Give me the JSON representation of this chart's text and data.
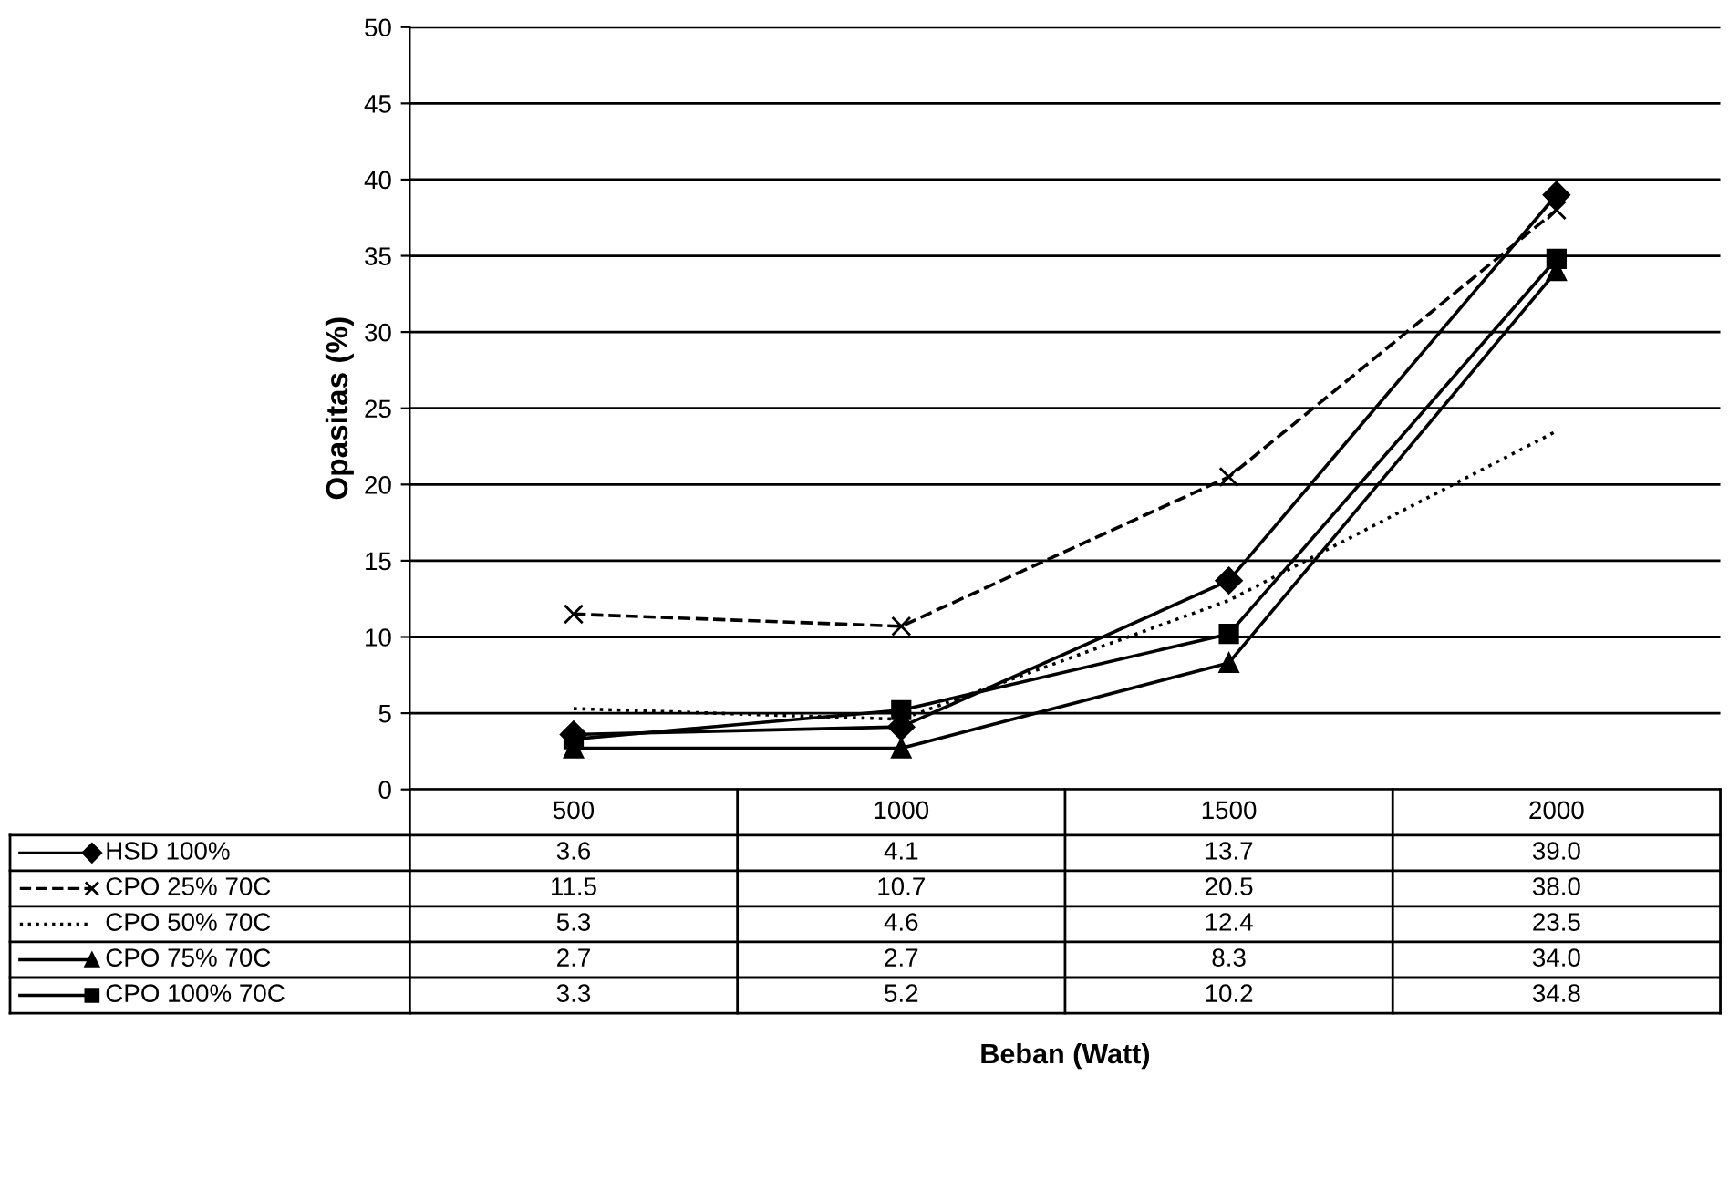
{
  "chart_data": {
    "type": "line",
    "annotations": [
      "Beban (Watt)"
    ],
    "ylabel": "Opasitas (%)",
    "categories": [
      "500",
      "1000",
      "1500",
      "2000"
    ],
    "ylim": [
      0,
      50
    ],
    "yticks": [
      0,
      5,
      10,
      15,
      20,
      25,
      30,
      35,
      40,
      45,
      50
    ],
    "grid": "y",
    "legend": "bottom left",
    "series": [
      {
        "name": "HSD 100%",
        "color": "#000000",
        "marker": "diamond",
        "line_style": "solid",
        "values": [
          3.6,
          4.1,
          13.7,
          39.0
        ],
        "value_labels": [
          "3.6",
          "4.1",
          "13.7",
          "39.0"
        ]
      },
      {
        "name": "CPO 25% 70C",
        "color": "#000000",
        "marker": "cross",
        "line_style": "dashed",
        "values": [
          11.5,
          10.7,
          20.5,
          38.0
        ],
        "value_labels": [
          "11.5",
          "10.7",
          "20.5",
          "38.0"
        ]
      },
      {
        "name": "CPO 50% 70C",
        "color": "#000000",
        "marker": "none",
        "line_style": "dotted",
        "values": [
          5.3,
          4.6,
          12.4,
          23.5
        ],
        "value_labels": [
          "5.3",
          "4.6",
          "12.4",
          "23.5"
        ]
      },
      {
        "name": "CPO 75% 70C",
        "color": "#000000",
        "marker": "triangle",
        "line_style": "solid",
        "values": [
          2.7,
          2.7,
          8.3,
          34.0
        ],
        "value_labels": [
          "2.7",
          "2.7",
          "8.3",
          "34.0"
        ]
      },
      {
        "name": "CPO 100% 70C",
        "color": "#000000",
        "marker": "square",
        "line_style": "solid",
        "values": [
          3.3,
          5.2,
          10.2,
          34.8
        ],
        "value_labels": [
          "3.3",
          "5.2",
          "10.2",
          "34.8"
        ]
      }
    ]
  }
}
